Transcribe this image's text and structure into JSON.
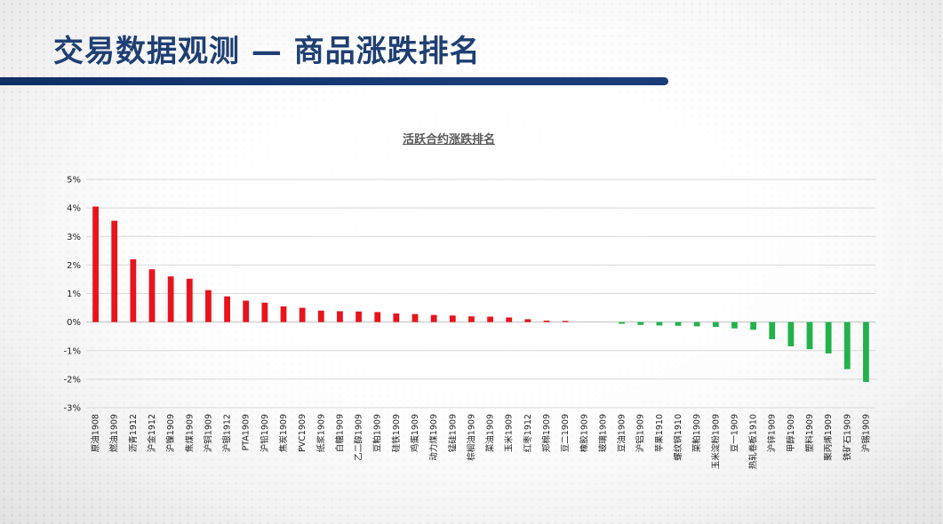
{
  "header": {
    "title": "交易数据观测 — 商品涨跌排名"
  },
  "colors": {
    "title": "#1f3f73",
    "title_bar": "#0f2f66",
    "positive": "#e8141b",
    "negative": "#22b24c",
    "grid": "#d9d9d9"
  },
  "chart_data": {
    "type": "bar",
    "title": "活跃合约涨跌排名",
    "xlabel": "",
    "ylabel": "",
    "ylim": [
      -3,
      5
    ],
    "yticks": [
      "-3%",
      "-2%",
      "-1%",
      "0%",
      "1%",
      "2%",
      "3%",
      "4%",
      "5%"
    ],
    "grid": true,
    "legend": "none",
    "unit": "%",
    "categories": [
      "原油1908",
      "燃油1909",
      "沥青1912",
      "沪金1912",
      "沪镍1909",
      "焦煤1909",
      "沪铜1909",
      "沪银1912",
      "PTA1909",
      "沪铅1909",
      "焦炭1909",
      "PVC1909",
      "纸浆1909",
      "白糖1909",
      "乙二醇1909",
      "豆粕1909",
      "硅铁1909",
      "鸡蛋1909",
      "动力煤1909",
      "锰硅1909",
      "棕榈油1909",
      "菜油1909",
      "玉米1909",
      "红枣1912",
      "郑棉1909",
      "豆二1909",
      "橡胶1909",
      "玻璃1909",
      "豆油1909",
      "沪铝1909",
      "苹果1910",
      "螺纹钢1910",
      "菜粕1909",
      "玉米淀粉1909",
      "豆一1909",
      "热轧卷板1910",
      "沪锌1909",
      "甲醇1909",
      "塑料1909",
      "聚丙烯1909",
      "铁矿石1909",
      "沪锡1909"
    ],
    "values": [
      4.05,
      3.55,
      2.2,
      1.85,
      1.6,
      1.52,
      1.12,
      0.9,
      0.75,
      0.68,
      0.55,
      0.5,
      0.4,
      0.38,
      0.37,
      0.35,
      0.3,
      0.28,
      0.25,
      0.23,
      0.2,
      0.19,
      0.16,
      0.1,
      0.05,
      0.04,
      0.0,
      0.0,
      -0.06,
      -0.1,
      -0.12,
      -0.13,
      -0.15,
      -0.17,
      -0.22,
      -0.27,
      -0.6,
      -0.85,
      -0.95,
      -1.1,
      -1.65,
      -2.1
    ]
  }
}
